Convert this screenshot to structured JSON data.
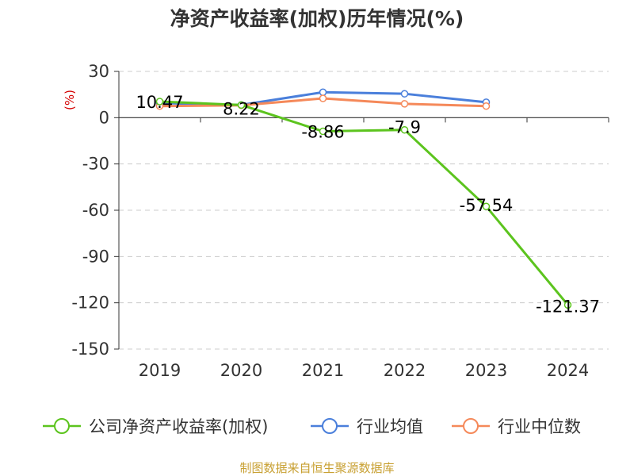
{
  "title": "净资产收益率(加权)历年情况(%)",
  "source": "制图数据来自恒生聚源数据库",
  "chart_data": {
    "type": "line",
    "title": "净资产收益率(加权)历年情况(%)",
    "ylabel": "(%)",
    "xlabel": "",
    "categories": [
      "2019",
      "2020",
      "2021",
      "2022",
      "2023",
      "2024"
    ],
    "y_ticks": [
      30,
      0,
      -30,
      -60,
      -90,
      -120,
      -150
    ],
    "ylim": [
      -150,
      30
    ],
    "grid": true,
    "legend_position": "bottom",
    "series": [
      {
        "name": "公司净资产收益率(加权)",
        "color": "#5cc41e",
        "values": [
          10.47,
          8.22,
          -8.86,
          -7.9,
          -57.54,
          -121.37
        ],
        "labels": [
          "10.47",
          "8.22",
          "-8.86",
          "-7.9",
          "-57.54",
          "-121.37"
        ]
      },
      {
        "name": "行业均值",
        "color": "#4a7fdb",
        "values": [
          9.5,
          8.3,
          16.5,
          15.5,
          10.0,
          null
        ]
      },
      {
        "name": "行业中位数",
        "color": "#f5895a",
        "values": [
          7.5,
          8.0,
          12.5,
          9.0,
          7.5,
          null
        ]
      }
    ]
  }
}
